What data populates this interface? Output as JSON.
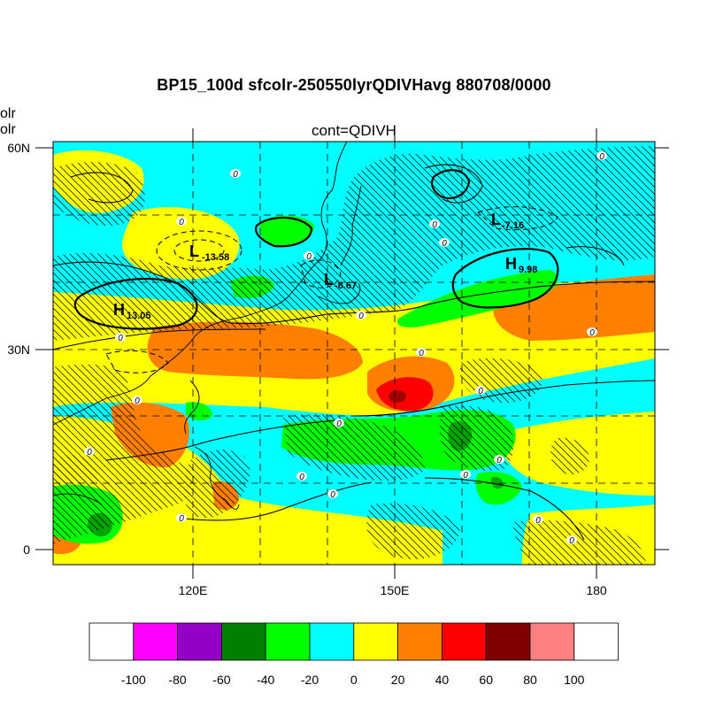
{
  "title": "BP15_100d sfcolr-250550lyrQDIVHavg  880708/0000",
  "subtitle": "cont=QDIVH",
  "left_labels": [
    "olr",
    "olr"
  ],
  "lat_ticks": [
    "60N",
    "30N",
    "0"
  ],
  "lon_ticks": [
    "120E",
    "150E",
    "180"
  ],
  "pressure_labels": [
    {
      "letter": "L",
      "value": "-13.58"
    },
    {
      "letter": "L",
      "value": "-8.67"
    },
    {
      "letter": "L",
      "value": "-7.16"
    },
    {
      "letter": "H",
      "value": "13.05"
    },
    {
      "letter": "H",
      "value": "9.98"
    }
  ],
  "contour_zero_label": "0",
  "colorbar": {
    "ticks": [
      "-100",
      "-80",
      "-60",
      "-40",
      "-20",
      "0",
      "20",
      "40",
      "60",
      "80",
      "100"
    ],
    "colors": [
      "#ffffff",
      "#ff00ff",
      "#9400c8",
      "#008000",
      "#00ff00",
      "#00ffff",
      "#ffff00",
      "#ff8000",
      "#ff0000",
      "#800000",
      "#ff8080",
      "#ffffff"
    ]
  }
}
